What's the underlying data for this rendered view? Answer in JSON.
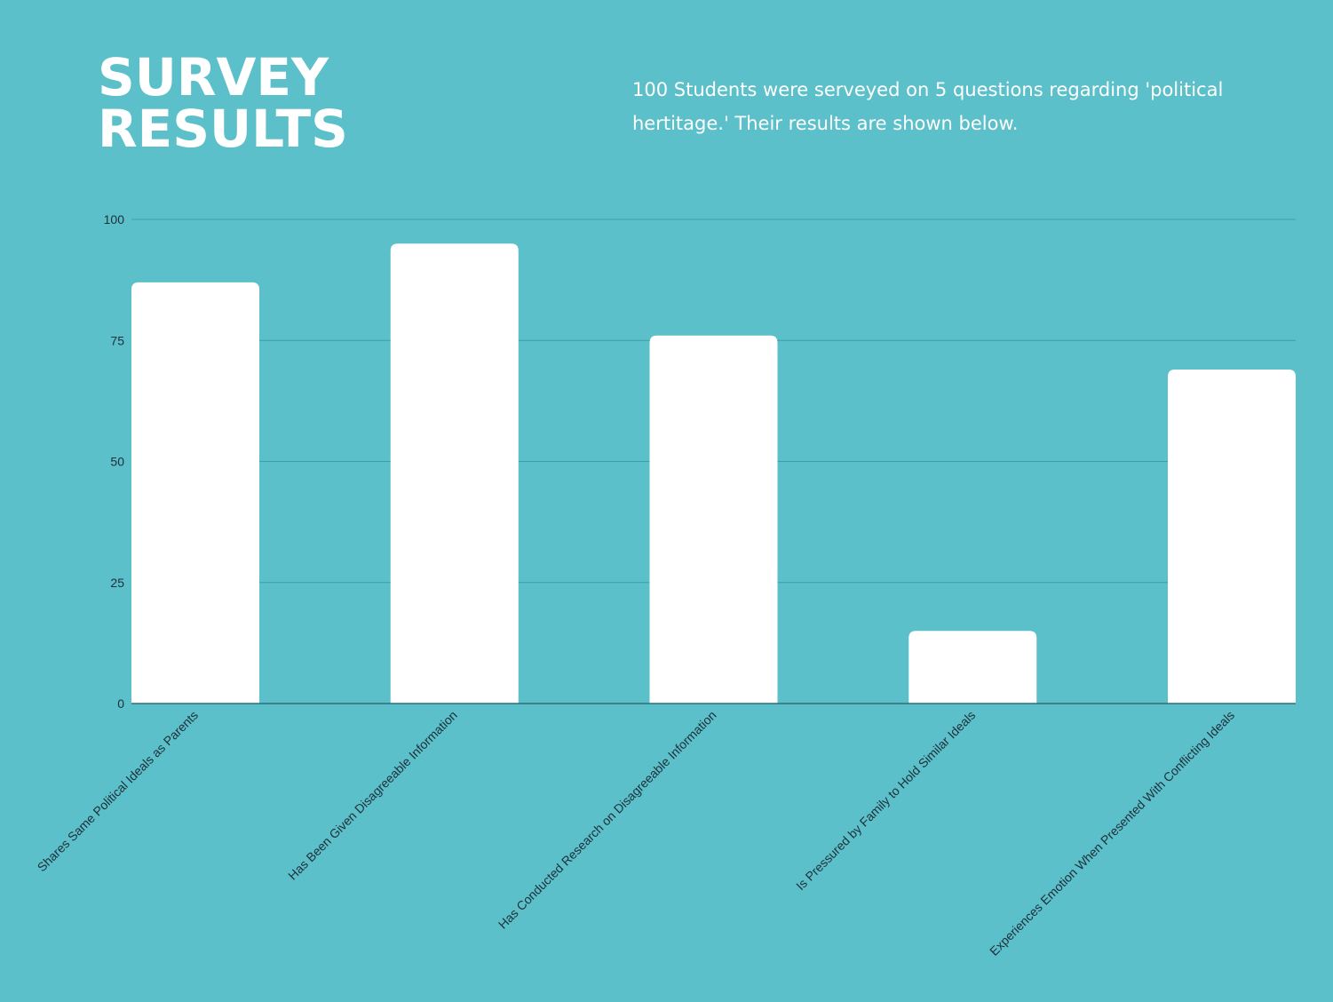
{
  "header": {
    "title_line1": "SURVEY",
    "title_line2": "RESULTS",
    "description": "100 Students were serveyed on 5 questions regarding 'political hertitage.' Their results are shown below."
  },
  "colors": {
    "background": "#5bc0c9",
    "bar": "#ffffff",
    "gridline": "#3f9ea8",
    "axis": "#2f6f78",
    "tick_text": "#1e2f3a"
  },
  "chart_data": {
    "type": "bar",
    "title": "",
    "xlabel": "",
    "ylabel": "",
    "ylim": [
      0,
      100
    ],
    "yticks": [
      0,
      25,
      50,
      75,
      100
    ],
    "grid": true,
    "legend": "none",
    "categories": [
      "Shares Same Political Ideals as Parents",
      "Has Been Given Disagreeable Information",
      "Has Conducted Research on Disagreeable Information",
      "Is Pressured by Family to Hold Similar Ideals",
      "Experiences Emotion When Presented With Conflicting Ideals"
    ],
    "values": [
      87,
      95,
      76,
      15,
      69
    ]
  }
}
